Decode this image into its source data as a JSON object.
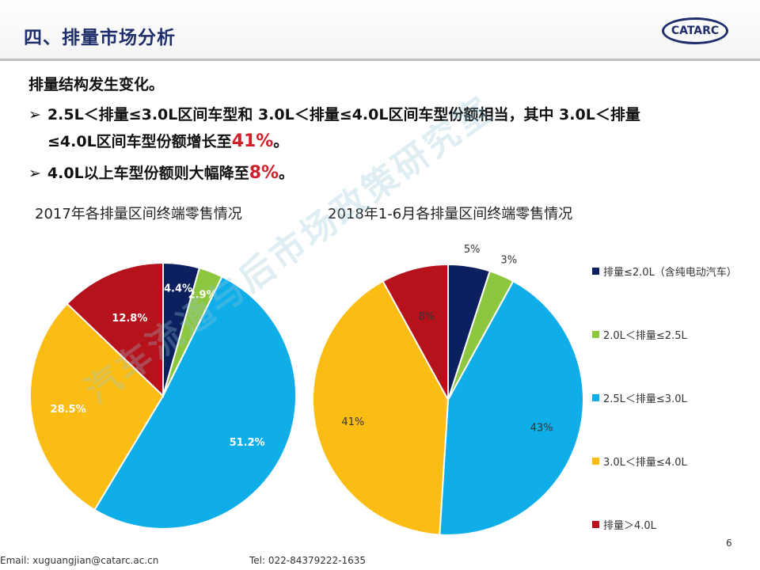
{
  "header": {
    "title": "四、排量市场分析",
    "logo_text": "CATARC"
  },
  "body": {
    "heading": "排量结构发生变化。",
    "bullet1_mark": "➢",
    "bullet1_line1": "2.5L＜排量≤3.0L区间车型和 3.0L＜排量≤4.0L区间车型份额相当，其中 3.0L＜排量",
    "bullet1_line2_pre": "≤4.0L区间车型份额增长至",
    "bullet1_hl": "41%",
    "bullet1_line2_post": "。",
    "bullet2_mark": "➢",
    "bullet2_pre": "4.0L以上车型份额则大幅降至",
    "bullet2_hl": "8%",
    "bullet2_post": "。"
  },
  "colors": {
    "navy": "#0c2060",
    "green": "#8dc63f",
    "blue": "#10aee8",
    "gold": "#fbbd13",
    "red": "#b5121b"
  },
  "legend": [
    {
      "label": "排量≤2.0L（含纯电动汽车）",
      "color": "#0c2060"
    },
    {
      "label": "2.0L＜排量≤2.5L",
      "color": "#8dc63f"
    },
    {
      "label": "2.5L＜排量≤3.0L",
      "color": "#10aee8"
    },
    {
      "label": "3.0L＜排量≤4.0L",
      "color": "#fbbd13"
    },
    {
      "label": "排量＞4.0L",
      "color": "#b5121b"
    }
  ],
  "chart_data": [
    {
      "type": "pie",
      "title": "2017年各排量区间终端零售情况",
      "categories": [
        "排量≤2.0L（含纯电动汽车）",
        "2.0L＜排量≤2.5L",
        "2.5L＜排量≤3.0L",
        "3.0L＜排量≤4.0L",
        "排量＞4.0L"
      ],
      "values": [
        4.4,
        2.9,
        51.2,
        28.5,
        12.8
      ],
      "data_labels": [
        "4.4%",
        "2.9%",
        "51.2%",
        "28.5%",
        "12.8%"
      ],
      "legend_position": "right"
    },
    {
      "type": "pie",
      "title": "2018年1-6月各排量区间终端零售情况",
      "categories": [
        "排量≤2.0L（含纯电动汽车）",
        "2.0L＜排量≤2.5L",
        "2.5L＜排量≤3.0L",
        "3.0L＜排量≤4.0L",
        "排量＞4.0L"
      ],
      "values": [
        5,
        3,
        43,
        41,
        8
      ],
      "data_labels": [
        "5%",
        "3%",
        "43%",
        "41%",
        "8%"
      ],
      "legend_position": "right"
    }
  ],
  "watermark": "汽车流通与后市场政策研究室",
  "footer": {
    "email": "Email: xuguangjian@catarc.ac.cn",
    "tel": "Tel: 022-84379222-1635",
    "page": "6"
  }
}
